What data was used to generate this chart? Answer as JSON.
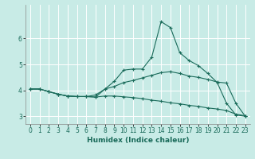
{
  "xlabel": "Humidex (Indice chaleur)",
  "bg_color": "#c8ebe6",
  "grid_color": "#ffffff",
  "line_color": "#1a6b5a",
  "xlim": [
    -0.5,
    23.5
  ],
  "ylim": [
    2.7,
    7.3
  ],
  "yticks": [
    3,
    4,
    5,
    6
  ],
  "xticks": [
    0,
    1,
    2,
    3,
    4,
    5,
    6,
    7,
    8,
    9,
    10,
    11,
    12,
    13,
    14,
    15,
    16,
    17,
    18,
    19,
    20,
    21,
    22,
    23
  ],
  "series": [
    {
      "x": [
        0,
        1,
        2,
        3,
        4,
        5,
        6,
        7,
        8,
        9,
        10,
        11,
        12,
        13,
        14,
        15,
        16,
        17,
        18,
        19,
        20,
        21,
        22,
        23
      ],
      "y": [
        4.05,
        4.05,
        3.95,
        3.85,
        3.78,
        3.76,
        3.76,
        3.74,
        4.05,
        4.35,
        4.78,
        4.82,
        4.82,
        5.28,
        6.65,
        6.42,
        5.45,
        5.15,
        4.95,
        4.65,
        4.3,
        3.5,
        3.05,
        3.0
      ]
    },
    {
      "x": [
        0,
        1,
        2,
        3,
        4,
        5,
        6,
        7,
        8,
        9,
        10,
        11,
        12,
        13,
        14,
        15,
        16,
        17,
        18,
        19,
        20,
        21,
        22,
        23
      ],
      "y": [
        4.05,
        4.05,
        3.95,
        3.85,
        3.78,
        3.76,
        3.76,
        3.82,
        4.05,
        4.15,
        4.3,
        4.38,
        4.48,
        4.58,
        4.68,
        4.72,
        4.65,
        4.55,
        4.5,
        4.42,
        4.32,
        4.28,
        3.5,
        3.0
      ]
    },
    {
      "x": [
        0,
        1,
        2,
        3,
        4,
        5,
        6,
        7,
        8,
        9,
        10,
        11,
        12,
        13,
        14,
        15,
        16,
        17,
        18,
        19,
        20,
        21,
        22,
        23
      ],
      "y": [
        4.05,
        4.05,
        3.95,
        3.85,
        3.78,
        3.76,
        3.76,
        3.74,
        3.78,
        3.78,
        3.75,
        3.72,
        3.68,
        3.62,
        3.58,
        3.52,
        3.48,
        3.42,
        3.38,
        3.32,
        3.28,
        3.22,
        3.08,
        3.02
      ]
    }
  ]
}
